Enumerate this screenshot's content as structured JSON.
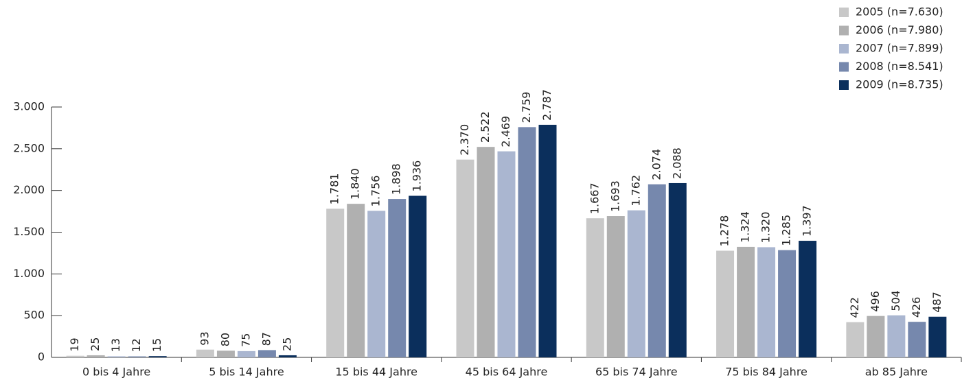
{
  "chart_data": {
    "type": "bar",
    "categories": [
      "0 bis 4 Jahre",
      "5 bis 14 Jahre",
      "15 bis 44 Jahre",
      "45 bis 64 Jahre",
      "65 bis 74 Jahre",
      "75 bis 84 Jahre",
      "ab 85 Jahre"
    ],
    "series": [
      {
        "name": "2005 (n=7.630)",
        "color": "#c8c8c8",
        "values": [
          19,
          93,
          1781,
          2370,
          1667,
          1278,
          422
        ],
        "value_labels": [
          "19",
          "93",
          "1.781",
          "2.370",
          "1.667",
          "1.278",
          "422"
        ]
      },
      {
        "name": "2006 (n=7.980)",
        "color": "#b0b0b0",
        "values": [
          25,
          80,
          1840,
          2522,
          1693,
          1324,
          496
        ],
        "value_labels": [
          "25",
          "80",
          "1.840",
          "2.522",
          "1.693",
          "1.324",
          "496"
        ]
      },
      {
        "name": "2007 (n=7.899)",
        "color": "#aab6d0",
        "values": [
          13,
          75,
          1756,
          2469,
          1762,
          1320,
          504
        ],
        "value_labels": [
          "13",
          "75",
          "1.756",
          "2.469",
          "1.762",
          "1.320",
          "504"
        ]
      },
      {
        "name": "2008 (n=8.541)",
        "color": "#7688ad",
        "values": [
          12,
          87,
          1898,
          2759,
          2074,
          1285,
          426
        ],
        "value_labels": [
          "12",
          "87",
          "1.898",
          "2.759",
          "2.074",
          "1.285",
          "426"
        ]
      },
      {
        "name": "2009 (n=8.735)",
        "color": "#0b2f5c",
        "values": [
          15,
          25,
          1936,
          2787,
          2088,
          1397,
          487
        ],
        "value_labels": [
          "15",
          "25",
          "1.936",
          "2.787",
          "2.088",
          "1.397",
          "487"
        ]
      }
    ],
    "ylim": [
      0,
      3000
    ],
    "yticks": [
      0,
      500,
      {
        "value": 1000,
        "label": "1.000"
      },
      {
        "value": 1500,
        "label": "1.500"
      },
      {
        "value": 2000,
        "label": "2.000"
      },
      {
        "value": 2500,
        "label": "2.500"
      },
      {
        "value": 3000,
        "label": "3.000"
      }
    ],
    "grid": false,
    "legend": "top-right"
  }
}
